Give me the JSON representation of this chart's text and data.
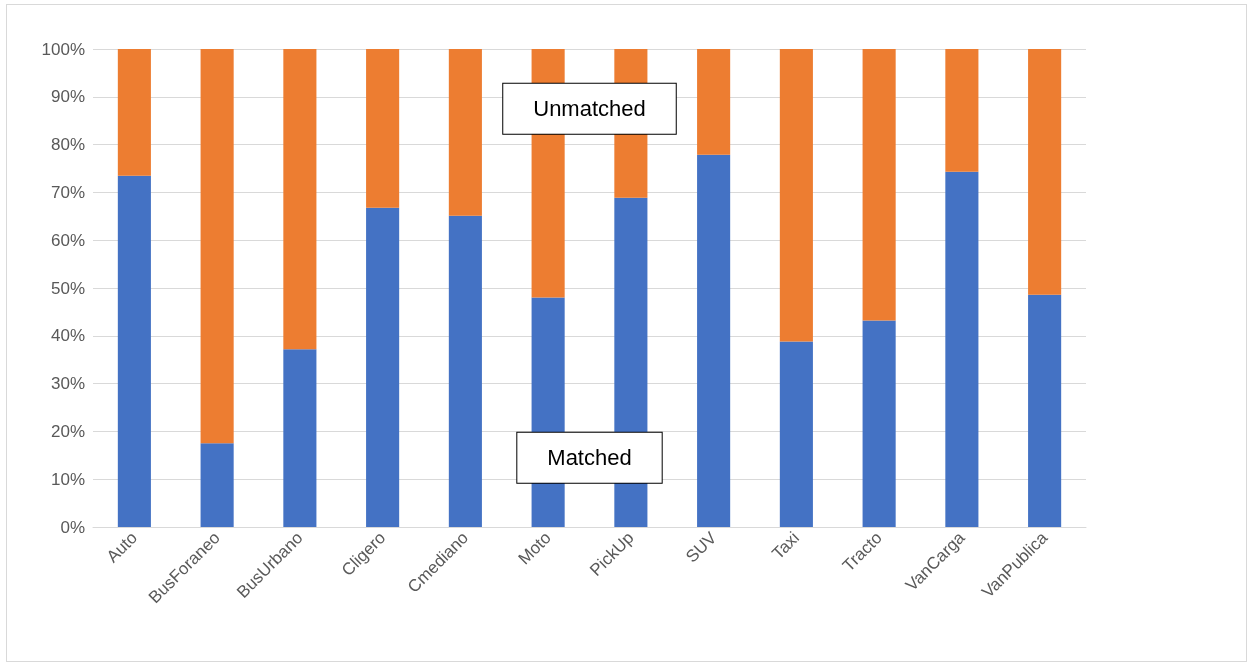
{
  "chart_data": {
    "type": "bar",
    "stacked": true,
    "categories": [
      "Auto",
      "BusForaneo",
      "BusUrbano",
      "Cligero",
      "Cmediano",
      "Moto",
      "PickUp",
      "SUV",
      "Taxi",
      "Tracto",
      "VanCarga",
      "VanPublica"
    ],
    "series": [
      {
        "name": "Matched",
        "color": "#4472c4",
        "values": [
          73.5,
          17.5,
          37.2,
          66.8,
          65.1,
          48.0,
          68.9,
          77.9,
          38.8,
          43.2,
          74.3,
          48.6
        ]
      },
      {
        "name": "Unmatched",
        "color": "#ed7d31",
        "values": [
          26.5,
          82.5,
          62.8,
          33.2,
          34.9,
          52.0,
          31.1,
          22.1,
          61.2,
          56.8,
          25.7,
          51.4
        ]
      }
    ],
    "ylim": [
      0,
      100
    ],
    "yticks": [
      {
        "value": 0,
        "label": "0%"
      },
      {
        "value": 10,
        "label": "10%"
      },
      {
        "value": 20,
        "label": "20%"
      },
      {
        "value": 30,
        "label": "30%"
      },
      {
        "value": 40,
        "label": "40%"
      },
      {
        "value": 50,
        "label": "50%"
      },
      {
        "value": 60,
        "label": "60%"
      },
      {
        "value": 70,
        "label": "70%"
      },
      {
        "value": 80,
        "label": "80%"
      },
      {
        "value": 90,
        "label": "90%"
      },
      {
        "value": 100,
        "label": "100%"
      }
    ],
    "grid": "y"
  }
}
